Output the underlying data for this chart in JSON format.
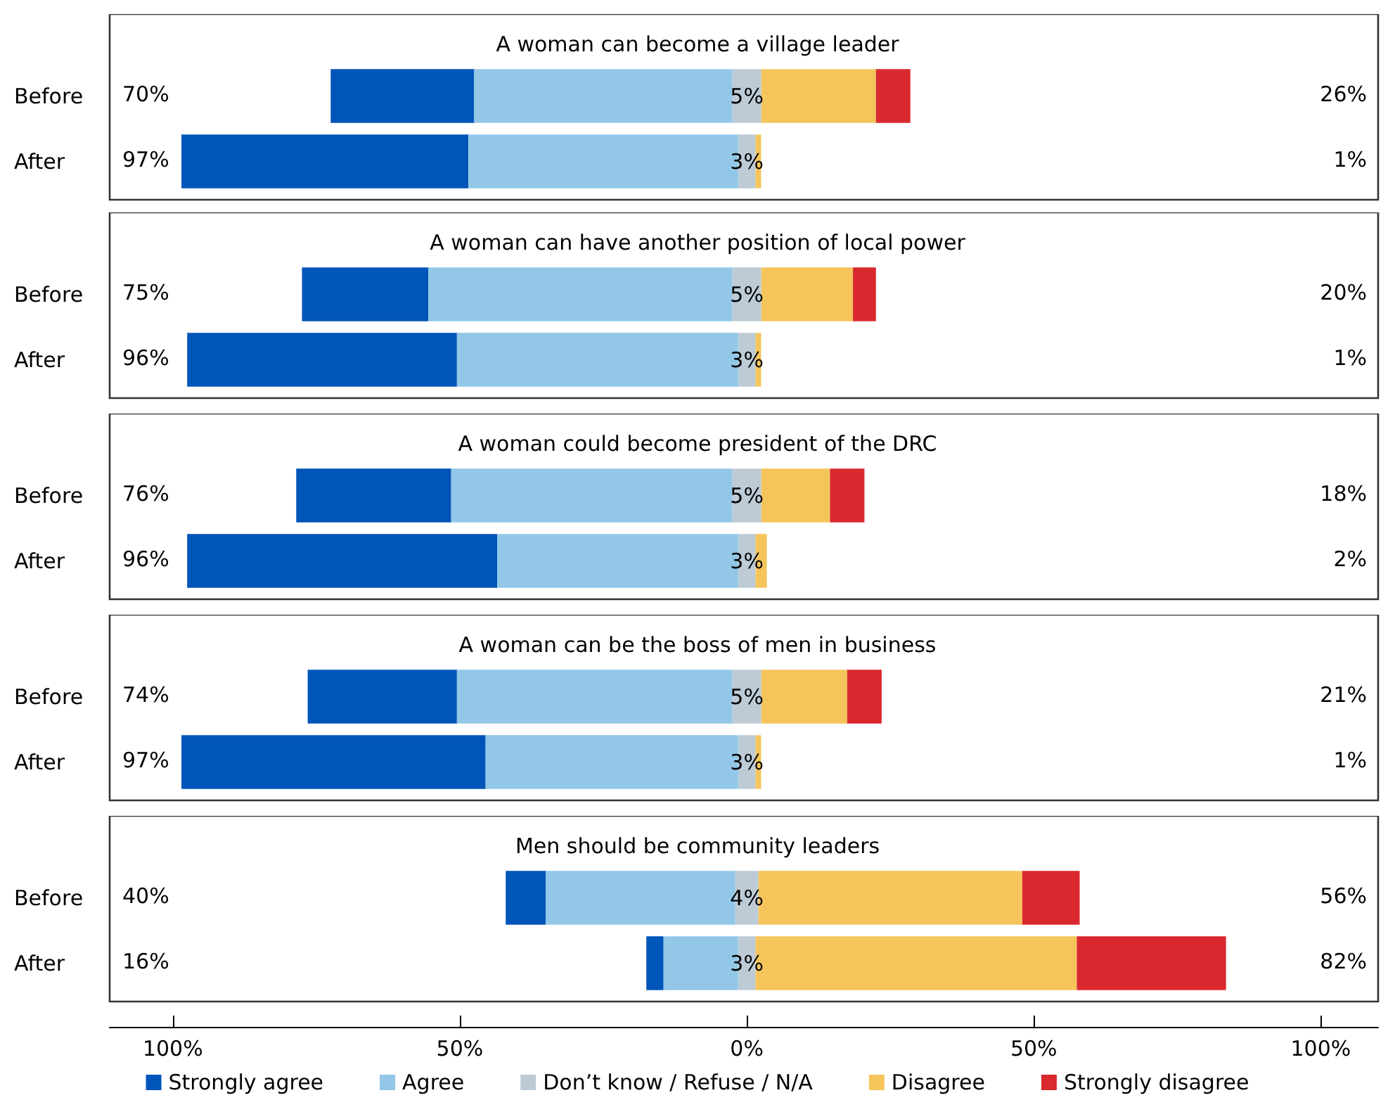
{
  "chart_data": [
    {
      "type": "bar",
      "orientation": "horizontal",
      "title": "A woman can become a village leader",
      "categories": [
        "Before",
        "After"
      ],
      "xlim": [
        -111,
        110
      ],
      "tick_labels": "y",
      "grid": false,
      "legend": false,
      "series": [
        {
          "color": "#0055b8",
          "base": [
            -72.5,
            -98.5
          ],
          "values": [
            25,
            50
          ]
        },
        {
          "color": "#92c7e8",
          "base": [
            -47.5,
            -48.5
          ],
          "values": [
            45,
            47
          ]
        },
        {
          "color": "#bdcbd6",
          "base": [
            -2.5,
            -1.5
          ],
          "values": [
            5,
            3
          ],
          "value_labels": [
            "5%",
            "3%"
          ]
        },
        {
          "color": "#f5c55c",
          "base": [
            2.5,
            1.5
          ],
          "values": [
            20,
            1
          ]
        },
        {
          "color": "#d9282e",
          "base": [
            22.5,
            null
          ],
          "values": [
            6,
            null
          ]
        }
      ],
      "annotations": [
        "70%",
        "26%",
        "97%",
        "1%"
      ]
    },
    {
      "type": "bar",
      "orientation": "horizontal",
      "title": "A woman can have another position of local power",
      "categories": [
        "Before",
        "After"
      ],
      "xlim": [
        -111,
        110
      ],
      "tick_labels": "y",
      "grid": false,
      "legend": false,
      "series": [
        {
          "color": "#0055b8",
          "base": [
            -77.5,
            -97.5
          ],
          "values": [
            22,
            47
          ]
        },
        {
          "color": "#92c7e8",
          "base": [
            -55.5,
            -50.5
          ],
          "values": [
            53,
            49
          ]
        },
        {
          "color": "#bdcbd6",
          "base": [
            -2.5,
            -1.5
          ],
          "values": [
            5,
            3
          ],
          "value_labels": [
            "5%",
            "3%"
          ]
        },
        {
          "color": "#f5c55c",
          "base": [
            2.5,
            1.5
          ],
          "values": [
            16,
            1
          ]
        },
        {
          "color": "#d9282e",
          "base": [
            18.5,
            null
          ],
          "values": [
            4,
            null
          ]
        }
      ],
      "annotations": [
        "75%",
        "20%",
        "96%",
        "1%"
      ]
    },
    {
      "type": "bar",
      "orientation": "horizontal",
      "title": "A woman could become president of the DRC",
      "categories": [
        "Before",
        "After"
      ],
      "xlim": [
        -111,
        110
      ],
      "tick_labels": "y",
      "grid": false,
      "legend": false,
      "series": [
        {
          "color": "#0055b8",
          "base": [
            -78.5,
            -97.5
          ],
          "values": [
            27,
            54
          ]
        },
        {
          "color": "#92c7e8",
          "base": [
            -51.5,
            -43.5
          ],
          "values": [
            49,
            42
          ]
        },
        {
          "color": "#bdcbd6",
          "base": [
            -2.5,
            -1.5
          ],
          "values": [
            5,
            3
          ],
          "value_labels": [
            "5%",
            "3%"
          ]
        },
        {
          "color": "#f5c55c",
          "base": [
            2.5,
            1.5
          ],
          "values": [
            12,
            2
          ]
        },
        {
          "color": "#d9282e",
          "base": [
            14.5,
            null
          ],
          "values": [
            6,
            null
          ]
        }
      ],
      "annotations": [
        "76%",
        "18%",
        "96%",
        "2%"
      ]
    },
    {
      "type": "bar",
      "orientation": "horizontal",
      "title": "A woman can be the boss of men in business",
      "categories": [
        "Before",
        "After"
      ],
      "xlim": [
        -111,
        110
      ],
      "tick_labels": "y",
      "grid": false,
      "legend": false,
      "series": [
        {
          "color": "#0055b8",
          "base": [
            -76.5,
            -98.5
          ],
          "values": [
            26,
            53
          ]
        },
        {
          "color": "#92c7e8",
          "base": [
            -50.5,
            -45.5
          ],
          "values": [
            48,
            44
          ]
        },
        {
          "color": "#bdcbd6",
          "base": [
            -2.5,
            -1.5
          ],
          "values": [
            5,
            3
          ],
          "value_labels": [
            "5%",
            "3%"
          ]
        },
        {
          "color": "#f5c55c",
          "base": [
            2.5,
            1.5
          ],
          "values": [
            15,
            1
          ]
        },
        {
          "color": "#d9282e",
          "base": [
            17.5,
            null
          ],
          "values": [
            6,
            null
          ]
        }
      ],
      "annotations": [
        "74%",
        "21%",
        "97%",
        "1%"
      ]
    },
    {
      "type": "bar",
      "orientation": "horizontal",
      "title": "Men should be community leaders",
      "categories": [
        "Before",
        "After"
      ],
      "xlim": [
        -111,
        110
      ],
      "xticks": [
        {
          "value": -100,
          "label": "100%"
        },
        {
          "value": -50,
          "label": "50%"
        },
        {
          "value": 0,
          "label": "0%"
        },
        {
          "value": 50,
          "label": "50%"
        },
        {
          "value": 100,
          "label": "100%"
        }
      ],
      "grid": false,
      "legend": "bottom",
      "series": [
        {
          "name": "Strongly agree",
          "color": "#0055b8",
          "base": [
            -42,
            -17.5
          ],
          "values": [
            7,
            3
          ]
        },
        {
          "name": "Agree",
          "color": "#92c7e8",
          "base": [
            -35,
            -14.5
          ],
          "values": [
            33,
            13
          ]
        },
        {
          "name": "Don’t know / Refuse / N/A",
          "color": "#bdcbd6",
          "base": [
            -2,
            -1.5
          ],
          "values": [
            4,
            3
          ],
          "value_labels": [
            "4%",
            "3%"
          ]
        },
        {
          "name": "Disagree",
          "color": "#f5c55c",
          "base": [
            2,
            1.5
          ],
          "values": [
            46,
            56
          ]
        },
        {
          "name": "Strongly disagree",
          "color": "#d9282e",
          "base": [
            48,
            57.5
          ],
          "values": [
            10,
            26
          ]
        }
      ],
      "annotations": [
        "40%",
        "56%",
        "16%",
        "82%"
      ]
    }
  ]
}
